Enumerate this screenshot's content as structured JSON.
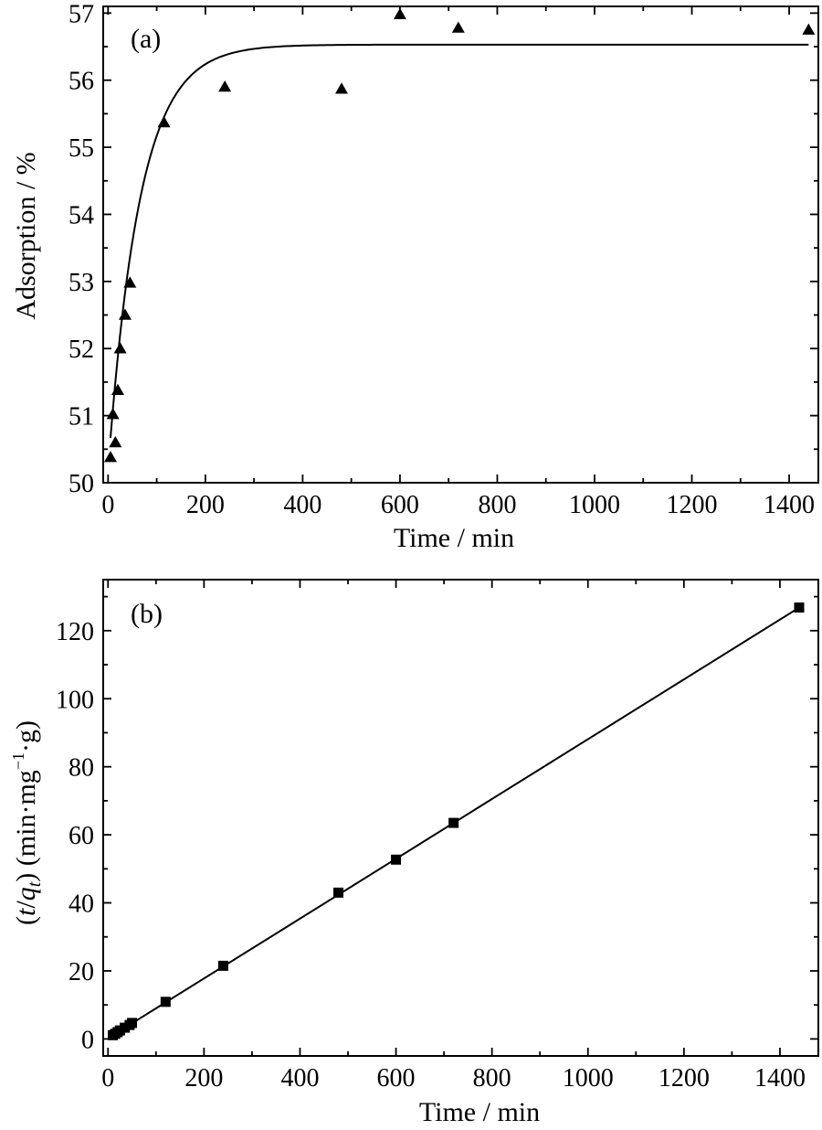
{
  "chart_data": [
    {
      "type": "scatter",
      "panel_label": "(a)",
      "xlabel": "Time / min",
      "ylabel": "Adsorption / %",
      "xlim": [
        -10,
        1460
      ],
      "ylim": [
        50,
        57.1
      ],
      "xticks": [
        0,
        200,
        400,
        600,
        800,
        1000,
        1200,
        1400
      ],
      "yticks": [
        50,
        51,
        52,
        53,
        54,
        55,
        56,
        57
      ],
      "marker": "triangle",
      "series": [
        {
          "x": [
            5,
            10,
            15,
            20,
            25,
            35,
            45,
            115,
            240,
            480,
            600,
            720,
            1440
          ],
          "y": [
            50.38,
            51.02,
            50.6,
            51.38,
            52.0,
            52.5,
            52.98,
            55.37,
            55.9,
            55.87,
            56.98,
            56.78,
            56.75
          ]
        }
      ],
      "fit": {
        "model": "exponential approach",
        "y0": 50.2,
        "ymax": 56.53,
        "tau": 65,
        "x_start": 5,
        "x_end": 1440
      }
    },
    {
      "type": "scatter",
      "panel_label": "(b)",
      "xlabel": "Time / min",
      "ylabel": "(t/qt) (min·mg⁻¹·g)",
      "ylabel_parts": {
        "open": "(",
        "t": "t",
        "slash": "/",
        "q": "q",
        "sub": "t",
        "rest": ") (min·mg",
        "sup": "−1",
        "end": "·g)"
      },
      "xlim": [
        -10,
        1480
      ],
      "ylim": [
        -5,
        135
      ],
      "xticks": [
        0,
        200,
        400,
        600,
        800,
        1000,
        1200,
        1400
      ],
      "yticks": [
        0,
        20,
        40,
        60,
        80,
        100,
        120
      ],
      "marker": "square",
      "series": [
        {
          "x": [
            10,
            15,
            20,
            25,
            35,
            45,
            50,
            120,
            240,
            480,
            600,
            720,
            1440
          ],
          "y": [
            1.1,
            1.5,
            2.0,
            2.5,
            3.3,
            4.1,
            4.7,
            10.9,
            21.5,
            43.0,
            52.7,
            63.5,
            126.8
          ]
        }
      ],
      "fit": {
        "model": "linear",
        "slope": 0.0879,
        "intercept": 0.2,
        "x_start": 5,
        "x_end": 1440
      }
    }
  ]
}
